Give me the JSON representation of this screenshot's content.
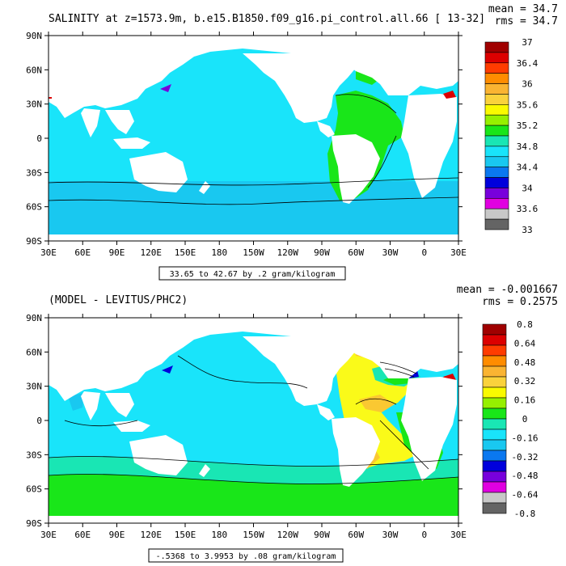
{
  "colors": {
    "ocean_light": "#19e4fa",
    "ocean_mid": "#19c8f0",
    "green": "#19e619",
    "teal": "#19e6b4",
    "yellow": "#fafa19",
    "orange": "#fac832",
    "land": "#ffffff",
    "frame": "#000000",
    "contour": "#000000"
  },
  "panels": [
    {
      "title": "SALINITY at z=1573.9m, b.e15.B1850.f09_g16.pi_control.all.66 [ 13-32]",
      "stat_mean": "mean = 34.7",
      "stat_rms": "rms = 34.7",
      "range_text": "33.65 to 42.67 by .2 gram/kilogram",
      "lat_ticks": [
        "90N",
        "60N",
        "30N",
        "0",
        "30S",
        "60S",
        "90S"
      ],
      "lon_ticks": [
        "30E",
        "60E",
        "90E",
        "120E",
        "150E",
        "180",
        "150W",
        "120W",
        "90W",
        "60W",
        "30W",
        "0",
        "30E"
      ],
      "colorbar": {
        "colors": [
          "#a00000",
          "#dc0000",
          "#ff3c00",
          "#ff8c00",
          "#fab432",
          "#fad23c",
          "#fafa00",
          "#96f000",
          "#19e619",
          "#19e6b4",
          "#19e4fa",
          "#19c8f0",
          "#0a78f0",
          "#0000dc",
          "#7800dc",
          "#e100e1",
          "#c8c8c8",
          "#646464"
        ],
        "labels": [
          "37",
          "36.4",
          "36",
          "35.6",
          "35.2",
          "34.8",
          "34.4",
          "34",
          "33.6",
          "33"
        ]
      }
    },
    {
      "title": "(MODEL - LEVITUS/PHC2)",
      "stat_mean": "mean = -0.001667",
      "stat_rms": "rms = 0.2575",
      "range_text": "-.5368 to 3.9953 by .08 gram/kilogram",
      "lat_ticks": [
        "90N",
        "60N",
        "30N",
        "0",
        "30S",
        "60S",
        "90S"
      ],
      "lon_ticks": [
        "30E",
        "60E",
        "90E",
        "120E",
        "150E",
        "180",
        "150W",
        "120W",
        "90W",
        "60W",
        "30W",
        "0",
        "30E"
      ],
      "colorbar": {
        "colors": [
          "#a00000",
          "#dc0000",
          "#ff3c00",
          "#ff8c00",
          "#fab432",
          "#fad23c",
          "#fafa00",
          "#96f000",
          "#19e619",
          "#19e6b4",
          "#19e4fa",
          "#19c8f0",
          "#0a78f0",
          "#0000dc",
          "#7800dc",
          "#e100e1",
          "#c8c8c8",
          "#646464"
        ],
        "labels": [
          "0.8",
          "0.64",
          "0.48",
          "0.32",
          "0.16",
          "0",
          "-0.16",
          "-0.32",
          "-0.48",
          "-0.64",
          "-0.8"
        ]
      }
    }
  ]
}
